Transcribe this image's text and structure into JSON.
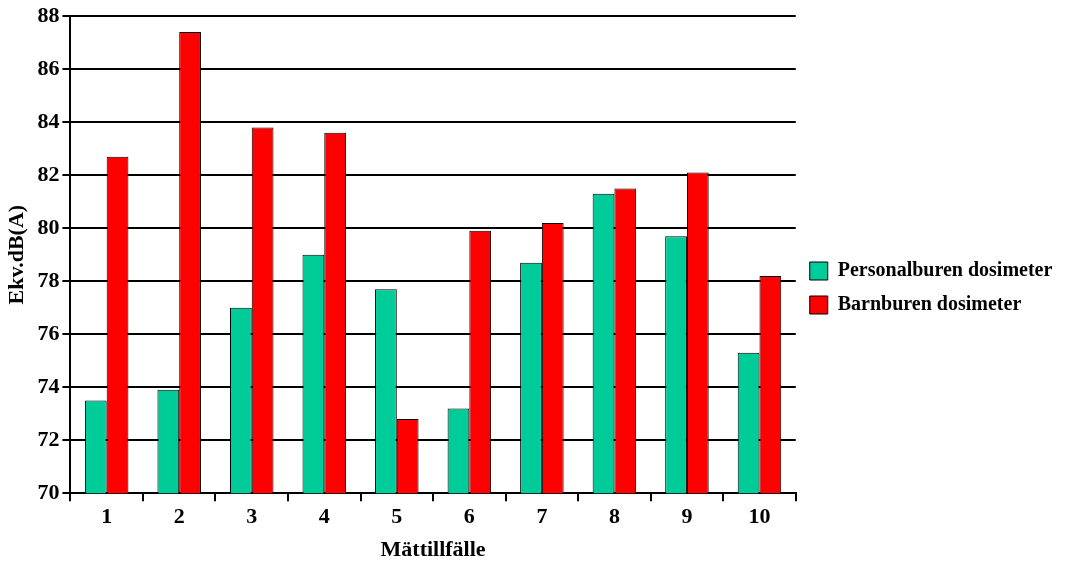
{
  "chart_data": {
    "type": "bar",
    "xlabel": "Mättillfälle",
    "ylabel": "Ekv.dB(A)",
    "categories": [
      "1",
      "2",
      "3",
      "4",
      "5",
      "6",
      "7",
      "8",
      "9",
      "10"
    ],
    "series": [
      {
        "name": "Personalburen dosimeter",
        "color": "#00cc99",
        "values": [
          73.5,
          73.9,
          77.0,
          79.0,
          77.7,
          73.2,
          78.7,
          81.3,
          79.7,
          75.3
        ]
      },
      {
        "name": "Barnburen dosimeter",
        "color": "#ff0000",
        "values": [
          82.7,
          87.4,
          83.8,
          83.6,
          72.8,
          79.9,
          80.2,
          81.5,
          82.1,
          78.2
        ]
      }
    ],
    "ylim": [
      70,
      88
    ],
    "yticks": [
      70,
      72,
      74,
      76,
      78,
      80,
      82,
      84,
      86,
      88
    ],
    "grid": "y",
    "legend": "right"
  }
}
